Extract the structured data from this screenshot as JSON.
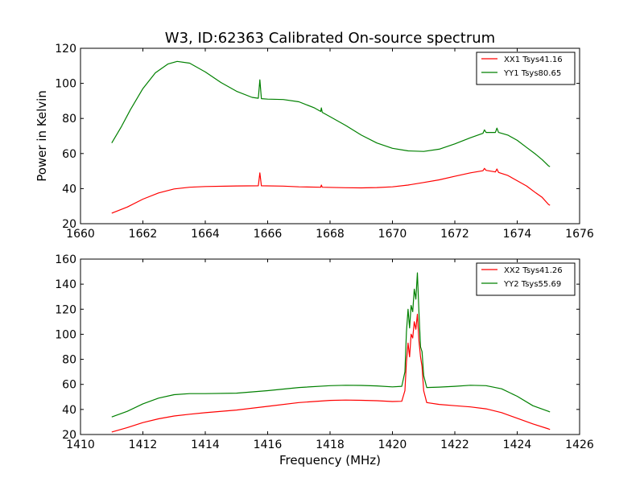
{
  "figure": {
    "title": "W3, ID:62363 Calibrated On-source spectrum",
    "ylabel": "Power in Kelvin",
    "xlabel": "Frequency (MHz)"
  },
  "chart_data": [
    {
      "type": "line",
      "xlim": [
        1660,
        1676
      ],
      "ylim": [
        20,
        120
      ],
      "xticks": [
        1660,
        1662,
        1664,
        1666,
        1668,
        1670,
        1672,
        1674,
        1676
      ],
      "yticks": [
        20,
        40,
        60,
        80,
        100,
        120
      ],
      "legend_position": "top-right",
      "series": [
        {
          "name": "XX1 Tsys41.16",
          "color": "#ff0000",
          "points": [
            [
              1661.0,
              26
            ],
            [
              1661.5,
              29.5
            ],
            [
              1662.0,
              34
            ],
            [
              1662.5,
              37.5
            ],
            [
              1663.0,
              39.8
            ],
            [
              1663.5,
              40.8
            ],
            [
              1664.0,
              41.2
            ],
            [
              1665.0,
              41.5
            ],
            [
              1665.7,
              41.6
            ],
            [
              1665.75,
              49
            ],
            [
              1665.8,
              41.6
            ],
            [
              1666.5,
              41.4
            ],
            [
              1667.0,
              41.0
            ],
            [
              1667.7,
              40.8
            ],
            [
              1667.72,
              42
            ],
            [
              1667.75,
              40.8
            ],
            [
              1668.5,
              40.5
            ],
            [
              1669.0,
              40.4
            ],
            [
              1669.5,
              40.6
            ],
            [
              1670.0,
              41.0
            ],
            [
              1670.5,
              42.0
            ],
            [
              1671.0,
              43.5
            ],
            [
              1671.5,
              45.0
            ],
            [
              1672.0,
              47.0
            ],
            [
              1672.5,
              49.0
            ],
            [
              1672.9,
              50.2
            ],
            [
              1672.95,
              51.5
            ],
            [
              1673.0,
              50.4
            ],
            [
              1673.3,
              49.5
            ],
            [
              1673.35,
              51.2
            ],
            [
              1673.4,
              49.2
            ],
            [
              1673.7,
              47.5
            ],
            [
              1674.0,
              44.5
            ],
            [
              1674.3,
              41.5
            ],
            [
              1674.6,
              37.5
            ],
            [
              1674.8,
              35
            ],
            [
              1675.0,
              31
            ],
            [
              1675.05,
              30.5
            ]
          ]
        },
        {
          "name": "YY1 Tsys80.65",
          "color": "#008000",
          "points": [
            [
              1661.0,
              66
            ],
            [
              1661.3,
              75
            ],
            [
              1661.6,
              85
            ],
            [
              1662.0,
              97
            ],
            [
              1662.4,
              106
            ],
            [
              1662.8,
              111
            ],
            [
              1663.1,
              112.5
            ],
            [
              1663.5,
              111.5
            ],
            [
              1664.0,
              106.5
            ],
            [
              1664.5,
              100.5
            ],
            [
              1665.0,
              95.5
            ],
            [
              1665.5,
              92.0
            ],
            [
              1665.7,
              91.5
            ],
            [
              1665.75,
              102
            ],
            [
              1665.8,
              91.3
            ],
            [
              1666.0,
              91.0
            ],
            [
              1666.5,
              90.8
            ],
            [
              1667.0,
              89.5
            ],
            [
              1667.5,
              86.0
            ],
            [
              1667.7,
              84.0
            ],
            [
              1667.72,
              86.0
            ],
            [
              1667.75,
              83.5
            ],
            [
              1668.0,
              81.0
            ],
            [
              1668.5,
              76.0
            ],
            [
              1669.0,
              70.5
            ],
            [
              1669.5,
              66.0
            ],
            [
              1670.0,
              63.0
            ],
            [
              1670.5,
              61.5
            ],
            [
              1671.0,
              61.2
            ],
            [
              1671.5,
              62.5
            ],
            [
              1672.0,
              65.5
            ],
            [
              1672.5,
              69.0
            ],
            [
              1672.9,
              71.5
            ],
            [
              1672.95,
              73.5
            ],
            [
              1673.0,
              72.0
            ],
            [
              1673.3,
              72.0
            ],
            [
              1673.35,
              74.5
            ],
            [
              1673.4,
              72.0
            ],
            [
              1673.7,
              70.5
            ],
            [
              1674.0,
              67.5
            ],
            [
              1674.3,
              63.5
            ],
            [
              1674.6,
              59.5
            ],
            [
              1674.8,
              56.5
            ],
            [
              1675.0,
              53.0
            ],
            [
              1675.05,
              52.5
            ]
          ]
        }
      ]
    },
    {
      "type": "line",
      "xlim": [
        1410,
        1426
      ],
      "ylim": [
        20,
        160
      ],
      "xticks": [
        1410,
        1412,
        1414,
        1416,
        1418,
        1420,
        1422,
        1424,
        1426
      ],
      "yticks": [
        20,
        40,
        60,
        80,
        100,
        120,
        140,
        160
      ],
      "legend_position": "top-right",
      "series": [
        {
          "name": "XX2 Tsys41.26",
          "color": "#ff0000",
          "points": [
            [
              1411.0,
              22
            ],
            [
              1411.5,
              25.5
            ],
            [
              1412.0,
              29.5
            ],
            [
              1412.5,
              32.5
            ],
            [
              1413.0,
              34.8
            ],
            [
              1413.5,
              36.2
            ],
            [
              1414.0,
              37.4
            ],
            [
              1415.0,
              39.5
            ],
            [
              1416.0,
              42.5
            ],
            [
              1417.0,
              45.5
            ],
            [
              1418.0,
              47.2
            ],
            [
              1418.5,
              47.5
            ],
            [
              1419.0,
              47.3
            ],
            [
              1419.5,
              47.0
            ],
            [
              1420.0,
              46.3
            ],
            [
              1420.3,
              46.5
            ],
            [
              1420.4,
              55
            ],
            [
              1420.45,
              78
            ],
            [
              1420.5,
              93
            ],
            [
              1420.55,
              82
            ],
            [
              1420.6,
              100
            ],
            [
              1420.65,
              97
            ],
            [
              1420.7,
              110
            ],
            [
              1420.75,
              104
            ],
            [
              1420.8,
              116
            ],
            [
              1420.85,
              95
            ],
            [
              1420.9,
              82
            ],
            [
              1420.95,
              74
            ],
            [
              1421.0,
              55
            ],
            [
              1421.1,
              45.5
            ],
            [
              1421.5,
              44.0
            ],
            [
              1422.0,
              43.0
            ],
            [
              1422.5,
              42.0
            ],
            [
              1423.0,
              40.5
            ],
            [
              1423.5,
              37.5
            ],
            [
              1424.0,
              33.0
            ],
            [
              1424.5,
              28.5
            ],
            [
              1425.0,
              24.5
            ],
            [
              1425.05,
              24
            ]
          ]
        },
        {
          "name": "YY2 Tsys55.69",
          "color": "#008000",
          "points": [
            [
              1411.0,
              34
            ],
            [
              1411.5,
              38.5
            ],
            [
              1412.0,
              44.5
            ],
            [
              1412.5,
              49.0
            ],
            [
              1413.0,
              51.8
            ],
            [
              1413.5,
              52.6
            ],
            [
              1414.0,
              52.6
            ],
            [
              1415.0,
              53.0
            ],
            [
              1416.0,
              55.0
            ],
            [
              1417.0,
              57.5
            ],
            [
              1418.0,
              59.0
            ],
            [
              1418.5,
              59.3
            ],
            [
              1419.0,
              59.2
            ],
            [
              1419.5,
              58.8
            ],
            [
              1420.0,
              58.0
            ],
            [
              1420.3,
              58.5
            ],
            [
              1420.4,
              70
            ],
            [
              1420.45,
              102
            ],
            [
              1420.5,
              120
            ],
            [
              1420.55,
              105
            ],
            [
              1420.6,
              123
            ],
            [
              1420.65,
              118
            ],
            [
              1420.7,
              136
            ],
            [
              1420.75,
              128
            ],
            [
              1420.8,
              149
            ],
            [
              1420.85,
              118
            ],
            [
              1420.9,
              90
            ],
            [
              1420.95,
              86
            ],
            [
              1421.0,
              67
            ],
            [
              1421.1,
              57.5
            ],
            [
              1421.5,
              57.8
            ],
            [
              1422.0,
              58.5
            ],
            [
              1422.5,
              59.3
            ],
            [
              1423.0,
              59.0
            ],
            [
              1423.5,
              56.5
            ],
            [
              1424.0,
              50.5
            ],
            [
              1424.5,
              43.0
            ],
            [
              1425.0,
              38.5
            ],
            [
              1425.05,
              38
            ]
          ]
        }
      ]
    }
  ]
}
